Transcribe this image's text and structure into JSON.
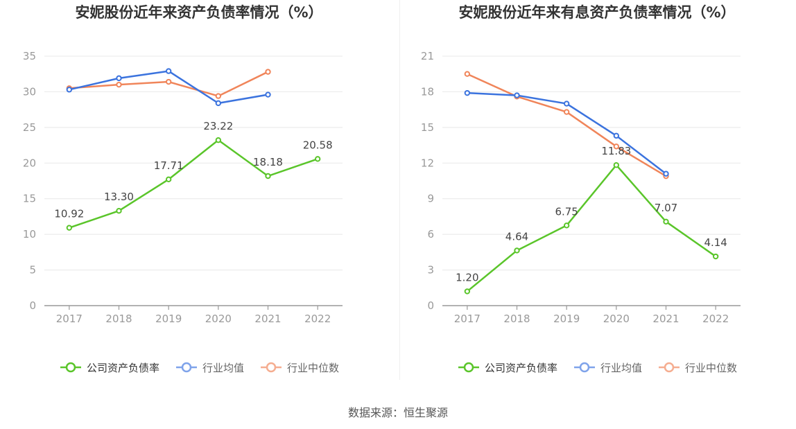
{
  "colors": {
    "company": "#5ac52a",
    "average": "#3b73de",
    "median": "#f0855a",
    "axis": "#999999",
    "grid": "#e8e8e8",
    "label": "#444444"
  },
  "source": "数据来源：恒生聚源",
  "chart_data": [
    {
      "type": "line",
      "title": "安妮股份近年来资产负债率情况（%）",
      "categories": [
        "2017",
        "2018",
        "2019",
        "2020",
        "2021",
        "2022"
      ],
      "ylim": [
        0,
        35
      ],
      "yticks": [
        0,
        5,
        10,
        15,
        20,
        25,
        30,
        35
      ],
      "grid": true,
      "legend_position": "bottom",
      "series": [
        {
          "name": "公司资产负债率",
          "key": "company",
          "values": [
            10.92,
            13.3,
            17.71,
            23.22,
            18.18,
            20.58
          ],
          "labels": [
            "10.92",
            "13.30",
            "17.71",
            "23.22",
            "18.18",
            "20.58"
          ]
        },
        {
          "name": "行业均值",
          "key": "average",
          "values": [
            30.3,
            31.9,
            32.9,
            28.4,
            29.6,
            null
          ]
        },
        {
          "name": "行业中位数",
          "key": "median",
          "values": [
            30.5,
            31.0,
            31.4,
            29.4,
            32.8,
            null
          ]
        }
      ]
    },
    {
      "type": "line",
      "title": "安妮股份近年来有息资产负债率情况（%）",
      "categories": [
        "2017",
        "2018",
        "2019",
        "2020",
        "2021",
        "2022"
      ],
      "ylim": [
        0,
        21
      ],
      "yticks": [
        0,
        3,
        6,
        9,
        12,
        15,
        18,
        21
      ],
      "grid": true,
      "legend_position": "bottom",
      "series": [
        {
          "name": "公司资产负债率",
          "key": "company",
          "values": [
            1.2,
            4.64,
            6.75,
            11.83,
            7.07,
            4.14
          ],
          "labels": [
            "1.20",
            "4.64",
            "6.75",
            "11.83",
            "7.07",
            "4.14"
          ]
        },
        {
          "name": "行业均值",
          "key": "average",
          "values": [
            17.9,
            17.7,
            17.0,
            14.3,
            11.1,
            null
          ]
        },
        {
          "name": "行业中位数",
          "key": "median",
          "values": [
            19.5,
            17.6,
            16.3,
            13.4,
            10.9,
            null
          ]
        }
      ]
    }
  ]
}
